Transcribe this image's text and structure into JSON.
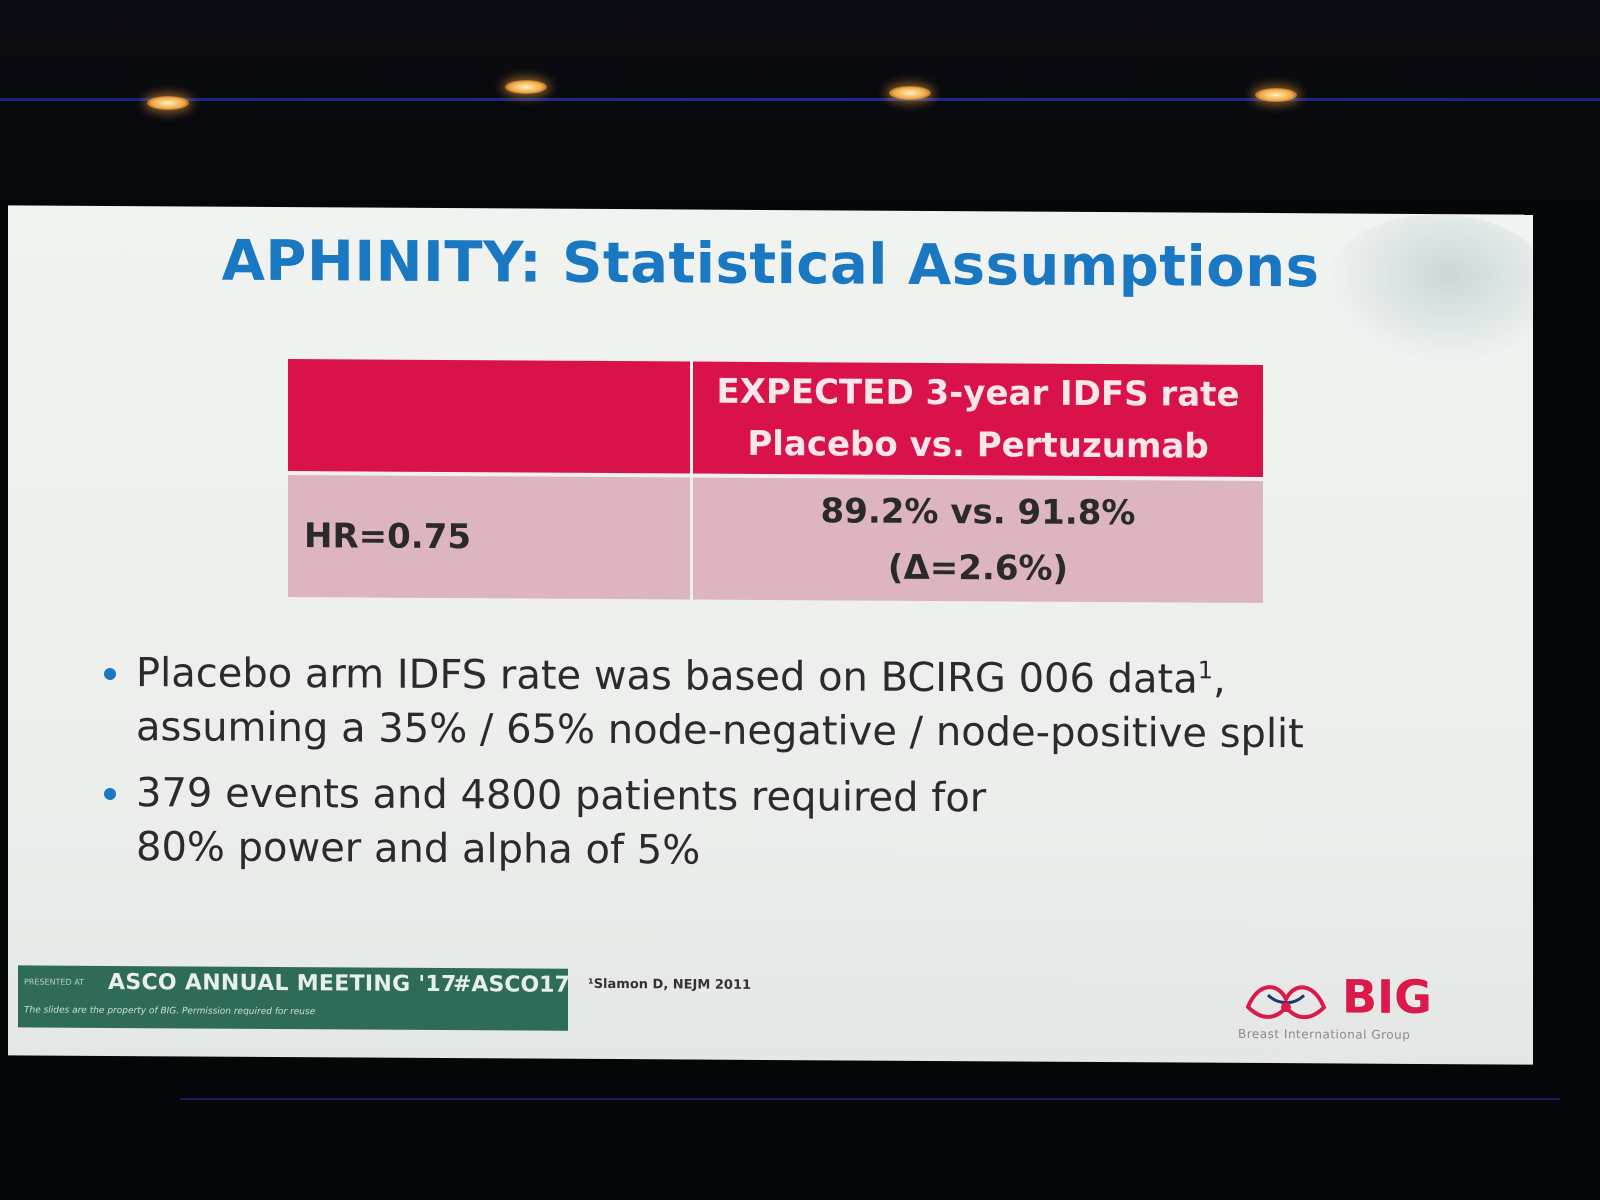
{
  "slide": {
    "title": "APHINITY: Statistical Assumptions",
    "table": {
      "header_line1": "EXPECTED 3-year IDFS rate",
      "header_line2": "Placebo vs. Pertuzumab",
      "row_label": "HR=0.75",
      "row_value_line1": "89.2% vs. 91.8%",
      "row_value_line2": "(Δ=2.6%)"
    },
    "bullets": [
      {
        "line1": "Placebo arm IDFS rate was based on BCIRG 006 data",
        "superscript": "1",
        "line1_end": ",",
        "line2": "assuming a 35% / 65% node-negative / node-positive split"
      },
      {
        "line1": "379 events and 4800 patients required for",
        "line2": "80% power and alpha of 5%"
      }
    ],
    "footer": {
      "presented_at": "PRESENTED AT",
      "meeting": "ASCO ANNUAL MEETING '17",
      "hashtag": "#ASCO17",
      "note": "The slides are the property of BIG. Permission required for reuse",
      "footnote": "¹Slamon D, NEJM 2011",
      "logo_text": "BIG",
      "logo_sub": "Breast International Group"
    },
    "colors": {
      "title_blue": "#1a78c2",
      "header_red": "#d9124a",
      "row_pink": "#ddb5bf",
      "footer_green": "#2e6b58"
    }
  }
}
